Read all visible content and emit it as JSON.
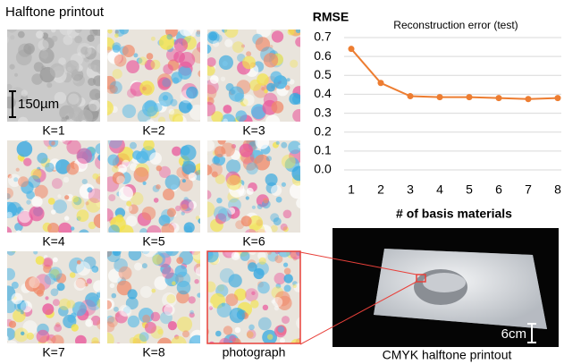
{
  "header": {
    "title": "Halftone printout"
  },
  "scale_bar": "150µm",
  "tiles": [
    "K=1",
    "K=2",
    "K=3",
    "K=4",
    "K=5",
    "K=6",
    "K=7",
    "K=8",
    "photograph"
  ],
  "photo": {
    "caption": "CMYK halftone printout",
    "scale_bar": "6cm"
  },
  "chart_data": {
    "type": "line",
    "title": "Reconstruction error (test)",
    "y_label": "RMSE",
    "x_label": "# of basis materials",
    "x": [
      1,
      2,
      3,
      4,
      5,
      6,
      7,
      8
    ],
    "values": [
      0.64,
      0.46,
      0.39,
      0.385,
      0.385,
      0.38,
      0.375,
      0.38
    ],
    "color": "#ed7d31",
    "xlim": [
      1,
      8
    ],
    "xticks": [
      1,
      2,
      3,
      4,
      5,
      6,
      7,
      8
    ],
    "ylim": [
      0,
      0.7
    ],
    "yticks": [
      {
        "value": 0,
        "label": "0.0"
      },
      0.1,
      0.2,
      0.3,
      0.4,
      0.5,
      0.6,
      0.7
    ],
    "grid": true
  }
}
